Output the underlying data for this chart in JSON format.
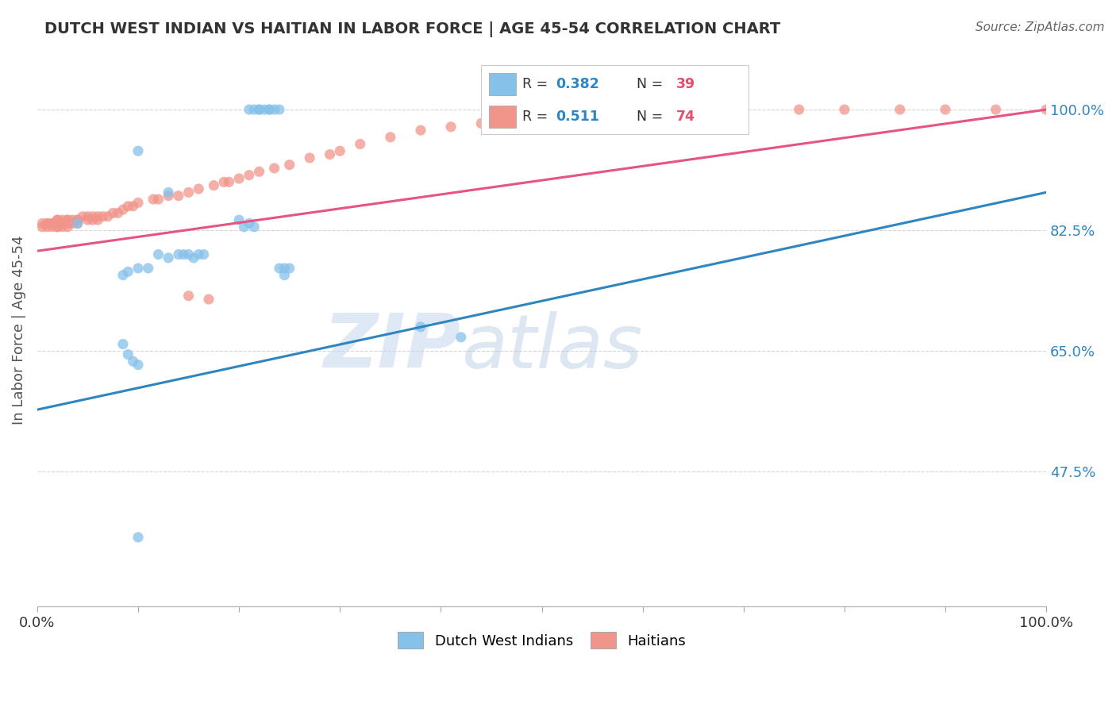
{
  "title": "DUTCH WEST INDIAN VS HAITIAN IN LABOR FORCE | AGE 45-54 CORRELATION CHART",
  "source": "Source: ZipAtlas.com",
  "ylabel": "In Labor Force | Age 45-54",
  "xmin": 0.0,
  "xmax": 1.0,
  "ymin": 0.28,
  "ymax": 1.08,
  "yticks": [
    0.475,
    0.65,
    0.825,
    1.0
  ],
  "ytick_labels": [
    "47.5%",
    "65.0%",
    "82.5%",
    "100.0%"
  ],
  "blue_color": "#85C1E9",
  "pink_color": "#F1948A",
  "blue_line_color": "#2E86C1",
  "pink_line_color": "#E75480",
  "blue_line_x0": 0.0,
  "blue_line_y0": 0.565,
  "blue_line_x1": 1.0,
  "blue_line_y1": 0.88,
  "pink_line_x0": 0.0,
  "pink_line_y0": 0.795,
  "pink_line_x1": 1.0,
  "pink_line_y1": 1.0,
  "watermark_zip": "ZIP",
  "watermark_atlas": "atlas",
  "dutch_x": [
    0.21,
    0.22,
    0.23,
    0.225,
    0.215,
    0.22,
    0.23,
    0.235,
    0.24,
    0.1,
    0.13,
    0.04,
    0.2,
    0.205,
    0.21,
    0.215,
    0.16,
    0.165,
    0.155,
    0.15,
    0.145,
    0.14,
    0.13,
    0.12,
    0.11,
    0.1,
    0.09,
    0.085,
    0.24,
    0.245,
    0.25,
    0.245,
    0.38,
    0.42,
    0.085,
    0.09,
    0.095,
    0.1,
    0.1
  ],
  "dutch_y": [
    1.0,
    1.0,
    1.0,
    1.0,
    1.0,
    1.0,
    1.0,
    1.0,
    1.0,
    0.94,
    0.88,
    0.835,
    0.84,
    0.83,
    0.835,
    0.83,
    0.79,
    0.79,
    0.785,
    0.79,
    0.79,
    0.79,
    0.785,
    0.79,
    0.77,
    0.77,
    0.765,
    0.76,
    0.77,
    0.77,
    0.77,
    0.76,
    0.685,
    0.67,
    0.66,
    0.645,
    0.635,
    0.63,
    0.38
  ],
  "haitian_x": [
    0.005,
    0.005,
    0.01,
    0.01,
    0.01,
    0.015,
    0.015,
    0.015,
    0.02,
    0.02,
    0.02,
    0.02,
    0.025,
    0.025,
    0.025,
    0.025,
    0.03,
    0.03,
    0.03,
    0.03,
    0.035,
    0.035,
    0.04,
    0.04,
    0.04,
    0.045,
    0.05,
    0.05,
    0.055,
    0.055,
    0.06,
    0.06,
    0.065,
    0.07,
    0.075,
    0.08,
    0.085,
    0.09,
    0.095,
    0.1,
    0.115,
    0.12,
    0.13,
    0.14,
    0.15,
    0.16,
    0.175,
    0.185,
    0.19,
    0.2,
    0.21,
    0.22,
    0.235,
    0.25,
    0.27,
    0.29,
    0.3,
    0.32,
    0.35,
    0.38,
    0.41,
    0.44,
    0.5,
    0.54,
    0.65,
    0.7,
    0.755,
    0.8,
    0.855,
    0.9,
    0.95,
    1.0,
    0.15,
    0.17
  ],
  "haitian_y": [
    0.835,
    0.83,
    0.835,
    0.83,
    0.835,
    0.835,
    0.83,
    0.835,
    0.84,
    0.83,
    0.84,
    0.83,
    0.84,
    0.835,
    0.83,
    0.835,
    0.84,
    0.835,
    0.84,
    0.83,
    0.835,
    0.84,
    0.84,
    0.835,
    0.84,
    0.845,
    0.845,
    0.84,
    0.845,
    0.84,
    0.845,
    0.84,
    0.845,
    0.845,
    0.85,
    0.85,
    0.855,
    0.86,
    0.86,
    0.865,
    0.87,
    0.87,
    0.875,
    0.875,
    0.88,
    0.885,
    0.89,
    0.895,
    0.895,
    0.9,
    0.905,
    0.91,
    0.915,
    0.92,
    0.93,
    0.935,
    0.94,
    0.95,
    0.96,
    0.97,
    0.975,
    0.98,
    0.99,
    1.0,
    1.0,
    1.0,
    1.0,
    1.0,
    1.0,
    1.0,
    1.0,
    1.0,
    0.73,
    0.725
  ]
}
